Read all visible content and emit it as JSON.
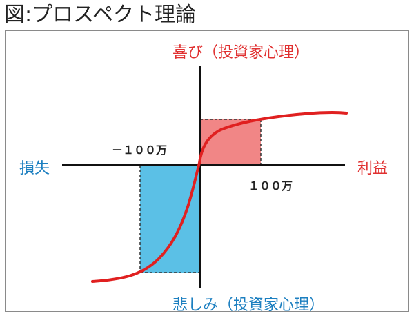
{
  "title": "図:プロスペクト理論",
  "labels": {
    "gain_psychology": "喜び（投資家心理）",
    "loss_psychology": "悲しみ（投資家心理）",
    "loss": "損失",
    "profit": "利益",
    "minus_1m": "－１００万",
    "plus_1m": "１００万"
  },
  "colors": {
    "curve": "#e02020",
    "gain_box_fill": "#f08080",
    "loss_box_fill": "#5bc0e6",
    "axis": "#111111",
    "red_text": "#e03030",
    "blue_text": "#1c7fc0"
  }
}
